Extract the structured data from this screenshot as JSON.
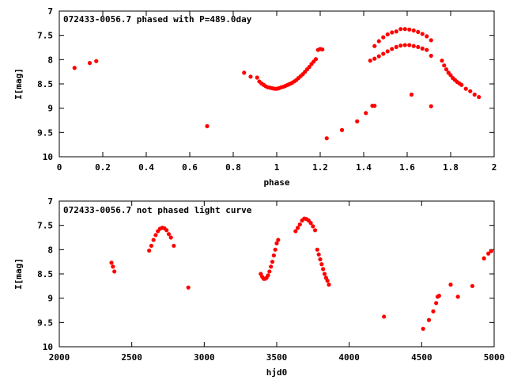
{
  "chart_data": [
    {
      "type": "scatter",
      "title": "072433-0056.7 phased with P=489.0day",
      "xlabel": "phase",
      "ylabel": "I[mag]",
      "xlim": [
        0,
        2
      ],
      "ylim": [
        7,
        10
      ],
      "y_inverted": true,
      "x_ticks": [
        "0",
        "0.2",
        "0.4",
        "0.6",
        "0.8",
        "1",
        "1.2",
        "1.4",
        "1.6",
        "1.8",
        "2"
      ],
      "y_ticks": [
        "7",
        "7.5",
        "8",
        "8.5",
        "9",
        "9.5",
        "10"
      ],
      "grid": false,
      "marker_color": "#ff0000",
      "series": [
        {
          "points": [
            [
              0.07,
              8.17
            ],
            [
              0.14,
              8.07
            ],
            [
              0.17,
              8.03
            ],
            [
              0.68,
              9.37
            ],
            [
              0.85,
              8.27
            ],
            [
              0.88,
              8.35
            ],
            [
              0.91,
              8.37
            ],
            [
              0.92,
              8.45
            ],
            [
              0.93,
              8.49
            ],
            [
              0.94,
              8.52
            ],
            [
              0.95,
              8.55
            ],
            [
              0.96,
              8.57
            ],
            [
              0.97,
              8.58
            ],
            [
              0.98,
              8.59
            ],
            [
              0.99,
              8.6
            ],
            [
              1.0,
              8.6
            ],
            [
              1.01,
              8.59
            ],
            [
              1.02,
              8.57
            ],
            [
              1.03,
              8.56
            ],
            [
              1.04,
              8.54
            ],
            [
              1.05,
              8.52
            ],
            [
              1.06,
              8.5
            ],
            [
              1.07,
              8.48
            ],
            [
              1.08,
              8.45
            ],
            [
              1.09,
              8.42
            ],
            [
              1.1,
              8.38
            ],
            [
              1.11,
              8.34
            ],
            [
              1.12,
              8.3
            ],
            [
              1.13,
              8.25
            ],
            [
              1.14,
              8.2
            ],
            [
              1.15,
              8.15
            ],
            [
              1.16,
              8.09
            ],
            [
              1.17,
              8.04
            ],
            [
              1.18,
              7.99
            ],
            [
              1.19,
              7.8
            ],
            [
              1.2,
              7.78
            ],
            [
              1.21,
              7.79
            ],
            [
              1.23,
              9.62
            ],
            [
              1.3,
              9.45
            ],
            [
              1.37,
              9.27
            ],
            [
              1.41,
              9.1
            ],
            [
              1.44,
              8.95
            ],
            [
              1.45,
              8.95
            ],
            [
              1.43,
              8.02
            ],
            [
              1.45,
              7.98
            ],
            [
              1.47,
              7.93
            ],
            [
              1.49,
              7.88
            ],
            [
              1.51,
              7.83
            ],
            [
              1.53,
              7.78
            ],
            [
              1.55,
              7.74
            ],
            [
              1.57,
              7.71
            ],
            [
              1.59,
              7.7
            ],
            [
              1.61,
              7.7
            ],
            [
              1.63,
              7.72
            ],
            [
              1.65,
              7.74
            ],
            [
              1.67,
              7.77
            ],
            [
              1.69,
              7.8
            ],
            [
              1.45,
              7.72
            ],
            [
              1.47,
              7.62
            ],
            [
              1.49,
              7.54
            ],
            [
              1.51,
              7.48
            ],
            [
              1.53,
              7.44
            ],
            [
              1.55,
              7.42
            ],
            [
              1.57,
              7.37
            ],
            [
              1.59,
              7.37
            ],
            [
              1.61,
              7.38
            ],
            [
              1.63,
              7.4
            ],
            [
              1.65,
              7.43
            ],
            [
              1.67,
              7.47
            ],
            [
              1.69,
              7.52
            ],
            [
              1.71,
              7.6
            ],
            [
              1.62,
              8.72
            ],
            [
              1.71,
              8.96
            ],
            [
              1.71,
              7.92
            ],
            [
              1.76,
              8.02
            ],
            [
              1.77,
              8.12
            ],
            [
              1.78,
              8.2
            ],
            [
              1.79,
              8.27
            ],
            [
              1.8,
              8.32
            ],
            [
              1.81,
              8.38
            ],
            [
              1.82,
              8.42
            ],
            [
              1.83,
              8.46
            ],
            [
              1.84,
              8.49
            ],
            [
              1.85,
              8.52
            ],
            [
              1.87,
              8.6
            ],
            [
              1.89,
              8.65
            ],
            [
              1.91,
              8.72
            ],
            [
              1.93,
              8.77
            ]
          ]
        }
      ]
    },
    {
      "type": "scatter",
      "title": "072433-0056.7 not phased light curve",
      "xlabel": "hjd0",
      "ylabel": "I[mag]",
      "xlim": [
        2000,
        5000
      ],
      "ylim": [
        7,
        10
      ],
      "y_inverted": true,
      "x_ticks": [
        "2000",
        "2500",
        "3000",
        "3500",
        "4000",
        "4500",
        "5000"
      ],
      "y_ticks": [
        "7",
        "7.5",
        "8",
        "8.5",
        "9",
        "9.5",
        "10"
      ],
      "grid": false,
      "marker_color": "#ff0000",
      "series": [
        {
          "points": [
            [
              2360,
              8.27
            ],
            [
              2370,
              8.35
            ],
            [
              2380,
              8.45
            ],
            [
              2620,
              8.02
            ],
            [
              2635,
              7.92
            ],
            [
              2650,
              7.8
            ],
            [
              2665,
              7.7
            ],
            [
              2680,
              7.62
            ],
            [
              2695,
              7.57
            ],
            [
              2710,
              7.55
            ],
            [
              2725,
              7.56
            ],
            [
              2740,
              7.6
            ],
            [
              2755,
              7.68
            ],
            [
              2770,
              7.75
            ],
            [
              2790,
              7.92
            ],
            [
              2890,
              8.78
            ],
            [
              3390,
              8.5
            ],
            [
              3400,
              8.56
            ],
            [
              3410,
              8.6
            ],
            [
              3420,
              8.6
            ],
            [
              3430,
              8.58
            ],
            [
              3440,
              8.53
            ],
            [
              3450,
              8.45
            ],
            [
              3460,
              8.35
            ],
            [
              3470,
              8.25
            ],
            [
              3480,
              8.12
            ],
            [
              3490,
              8.0
            ],
            [
              3500,
              7.87
            ],
            [
              3510,
              7.8
            ],
            [
              3630,
              7.62
            ],
            [
              3645,
              7.55
            ],
            [
              3660,
              7.48
            ],
            [
              3675,
              7.4
            ],
            [
              3690,
              7.36
            ],
            [
              3705,
              7.37
            ],
            [
              3720,
              7.4
            ],
            [
              3735,
              7.45
            ],
            [
              3750,
              7.52
            ],
            [
              3765,
              7.6
            ],
            [
              3780,
              8.0
            ],
            [
              3790,
              8.1
            ],
            [
              3800,
              8.2
            ],
            [
              3810,
              8.3
            ],
            [
              3820,
              8.4
            ],
            [
              3830,
              8.5
            ],
            [
              3840,
              8.58
            ],
            [
              3850,
              8.64
            ],
            [
              3860,
              8.72
            ],
            [
              4240,
              9.38
            ],
            [
              4510,
              9.63
            ],
            [
              4550,
              9.45
            ],
            [
              4580,
              9.27
            ],
            [
              4600,
              9.1
            ],
            [
              4610,
              8.97
            ],
            [
              4620,
              8.95
            ],
            [
              4700,
              8.72
            ],
            [
              4750,
              8.97
            ],
            [
              4850,
              8.75
            ],
            [
              4930,
              8.18
            ],
            [
              4960,
              8.08
            ],
            [
              4980,
              8.03
            ]
          ]
        }
      ]
    }
  ]
}
